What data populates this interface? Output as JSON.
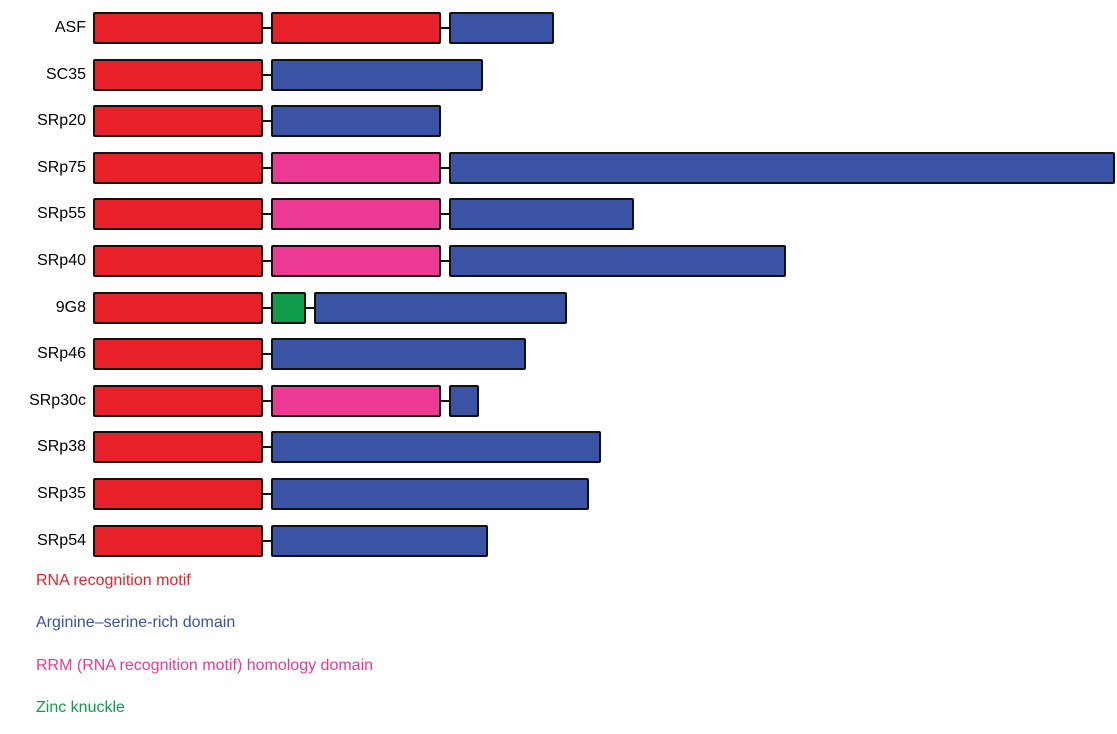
{
  "domain_colors": {
    "rrm": "#e8202a",
    "rs": "#3a53a4",
    "homology": "#ec3a94",
    "zinc": "#0f9d4b"
  },
  "proteins": [
    {
      "name": "ASF",
      "domains": [
        {
          "type": "rrm",
          "length": 170
        },
        {
          "type": "rrm",
          "length": 170
        },
        {
          "type": "rs",
          "length": 105
        }
      ]
    },
    {
      "name": "SC35",
      "domains": [
        {
          "type": "rrm",
          "length": 170
        },
        {
          "type": "rs",
          "length": 212
        }
      ]
    },
    {
      "name": "SRp20",
      "domains": [
        {
          "type": "rrm",
          "length": 170
        },
        {
          "type": "rs",
          "length": 170
        }
      ]
    },
    {
      "name": "SRp75",
      "domains": [
        {
          "type": "rrm",
          "length": 170
        },
        {
          "type": "homology",
          "length": 170
        },
        {
          "type": "rs",
          "length": 670
        }
      ]
    },
    {
      "name": "SRp55",
      "domains": [
        {
          "type": "rrm",
          "length": 170
        },
        {
          "type": "homology",
          "length": 170
        },
        {
          "type": "rs",
          "length": 185
        }
      ]
    },
    {
      "name": "SRp40",
      "domains": [
        {
          "type": "rrm",
          "length": 170
        },
        {
          "type": "homology",
          "length": 170
        },
        {
          "type": "rs",
          "length": 337
        }
      ]
    },
    {
      "name": "9G8",
      "domains": [
        {
          "type": "rrm",
          "length": 170
        },
        {
          "type": "zinc",
          "length": 35
        },
        {
          "type": "rs",
          "length": 253
        }
      ]
    },
    {
      "name": "SRp46",
      "domains": [
        {
          "type": "rrm",
          "length": 170
        },
        {
          "type": "rs",
          "length": 255
        }
      ]
    },
    {
      "name": "SRp30c",
      "domains": [
        {
          "type": "rrm",
          "length": 170
        },
        {
          "type": "homology",
          "length": 170
        },
        {
          "type": "rs",
          "length": 30
        }
      ]
    },
    {
      "name": "SRp38",
      "domains": [
        {
          "type": "rrm",
          "length": 170
        },
        {
          "type": "rs",
          "length": 330
        }
      ]
    },
    {
      "name": "SRp35",
      "domains": [
        {
          "type": "rrm",
          "length": 170
        },
        {
          "type": "rs",
          "length": 318
        }
      ]
    },
    {
      "name": "SRp54",
      "domains": [
        {
          "type": "rrm",
          "length": 170
        },
        {
          "type": "rs",
          "length": 217
        }
      ]
    }
  ],
  "legend": [
    {
      "key": "rrm",
      "label": "RNA recognition motif"
    },
    {
      "key": "rs",
      "label": "Arginine–serine-rich domain"
    },
    {
      "key": "homology",
      "label": "RRM (RNA recognition motif) homology domain"
    },
    {
      "key": "zinc",
      "label": "Zinc knuckle"
    }
  ]
}
